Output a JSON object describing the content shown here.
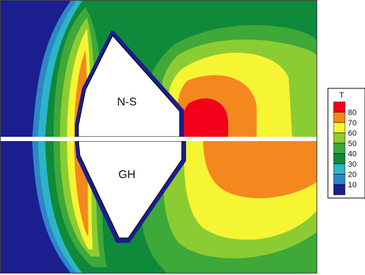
{
  "chart_data": {
    "type": "heatmap",
    "title": "",
    "regions": [
      {
        "label": "N-S",
        "half": "upper"
      },
      {
        "label": "GH",
        "half": "lower"
      }
    ],
    "legend": {
      "title": "T",
      "levels": [
        10,
        20,
        30,
        40,
        50,
        60,
        70,
        80
      ],
      "colors": {
        "10": "#1b1e8e",
        "20": "#2e86c8",
        "30": "#2cb5c9",
        "40": "#0e8a3a",
        "50": "#3ea838",
        "60": "#8ccc33",
        "70": "#f6f533",
        "80": "#f5871f",
        "90": "#f2001a"
      }
    }
  }
}
